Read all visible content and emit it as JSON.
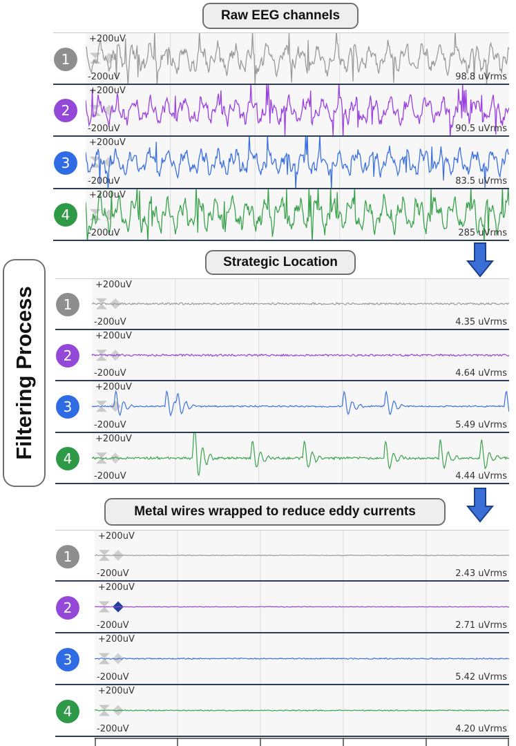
{
  "sections": [
    {
      "title": "Raw EEG channels",
      "channels": [
        {
          "number": "1",
          "color": "#8e8e8e",
          "trace_color": "#9a9a9a",
          "top_label": "+200uV",
          "bottom_label": "-200uV",
          "rms": "98.8 uVrms",
          "amplitude": 0.85,
          "spikes": 0.6
        },
        {
          "number": "2",
          "color": "#9448d8",
          "trace_color": "#9a3fe0",
          "top_label": "+200uV",
          "bottom_label": "-200uV",
          "rms": "90.5 uVrms",
          "amplitude": 0.8,
          "spikes": 0.7
        },
        {
          "number": "3",
          "color": "#2f6be3",
          "trace_color": "#3b70e0",
          "top_label": "+200uV",
          "bottom_label": "-200uV",
          "rms": "83.5 uVrms",
          "amplitude": 0.75,
          "spikes": 0.5
        },
        {
          "number": "4",
          "color": "#2e9a48",
          "trace_color": "#3aa24c",
          "top_label": "+200uV",
          "bottom_label": "-200uV",
          "rms": "285 uVrms",
          "amplitude": 1.0,
          "spikes": 0.9
        }
      ]
    },
    {
      "title": "Strategic Location",
      "channels": [
        {
          "number": "1",
          "color": "#8e8e8e",
          "trace_color": "#9a9a9a",
          "top_label": "+200uV",
          "bottom_label": "-200uV",
          "rms": "4.35 uVrms",
          "amplitude": 0.04,
          "spikes": 0
        },
        {
          "number": "2",
          "color": "#9448d8",
          "trace_color": "#9a3fe0",
          "top_label": "+200uV",
          "bottom_label": "-200uV",
          "rms": "4.64 uVrms",
          "amplitude": 0.04,
          "spikes": 0
        },
        {
          "number": "3",
          "color": "#2f6be3",
          "trace_color": "#3b70e0",
          "top_label": "+200uV",
          "bottom_label": "-200uV",
          "rms": "5.49 uVrms",
          "amplitude": 0.03,
          "spikes": 0.35
        },
        {
          "number": "4",
          "color": "#2e9a48",
          "trace_color": "#3aa24c",
          "top_label": "+200uV",
          "bottom_label": "-200uV",
          "rms": "4.44 uVrms",
          "amplitude": 0.05,
          "spikes": 0.5
        }
      ]
    },
    {
      "title": "Metal wires wrapped to reduce eddy currents",
      "channels": [
        {
          "number": "1",
          "color": "#8e8e8e",
          "trace_color": "#9a9a9a",
          "top_label": "+200uV",
          "bottom_label": "-200uV",
          "rms": "2.43 uVrms",
          "amplitude": 0.015,
          "spikes": 0
        },
        {
          "number": "2",
          "color": "#9448d8",
          "trace_color": "#9a3fe0",
          "top_label": "+200uV",
          "bottom_label": "-200uV",
          "rms": "2.71 uVrms",
          "amplitude": 0.015,
          "spikes": 0
        },
        {
          "number": "3",
          "color": "#2f6be3",
          "trace_color": "#3b70e0",
          "top_label": "+200uV",
          "bottom_label": "-200uV",
          "rms": "5.42 uVrms",
          "amplitude": 0.025,
          "spikes": 0
        },
        {
          "number": "4",
          "color": "#2e9a48",
          "trace_color": "#3aa24c",
          "top_label": "+200uV",
          "bottom_label": "-200uV",
          "rms": "4.20 uVrms",
          "amplitude": 0.02,
          "spikes": 0
        }
      ]
    }
  ],
  "side_label": "Filtering Process",
  "arrow_color": "#3a6fd8"
}
